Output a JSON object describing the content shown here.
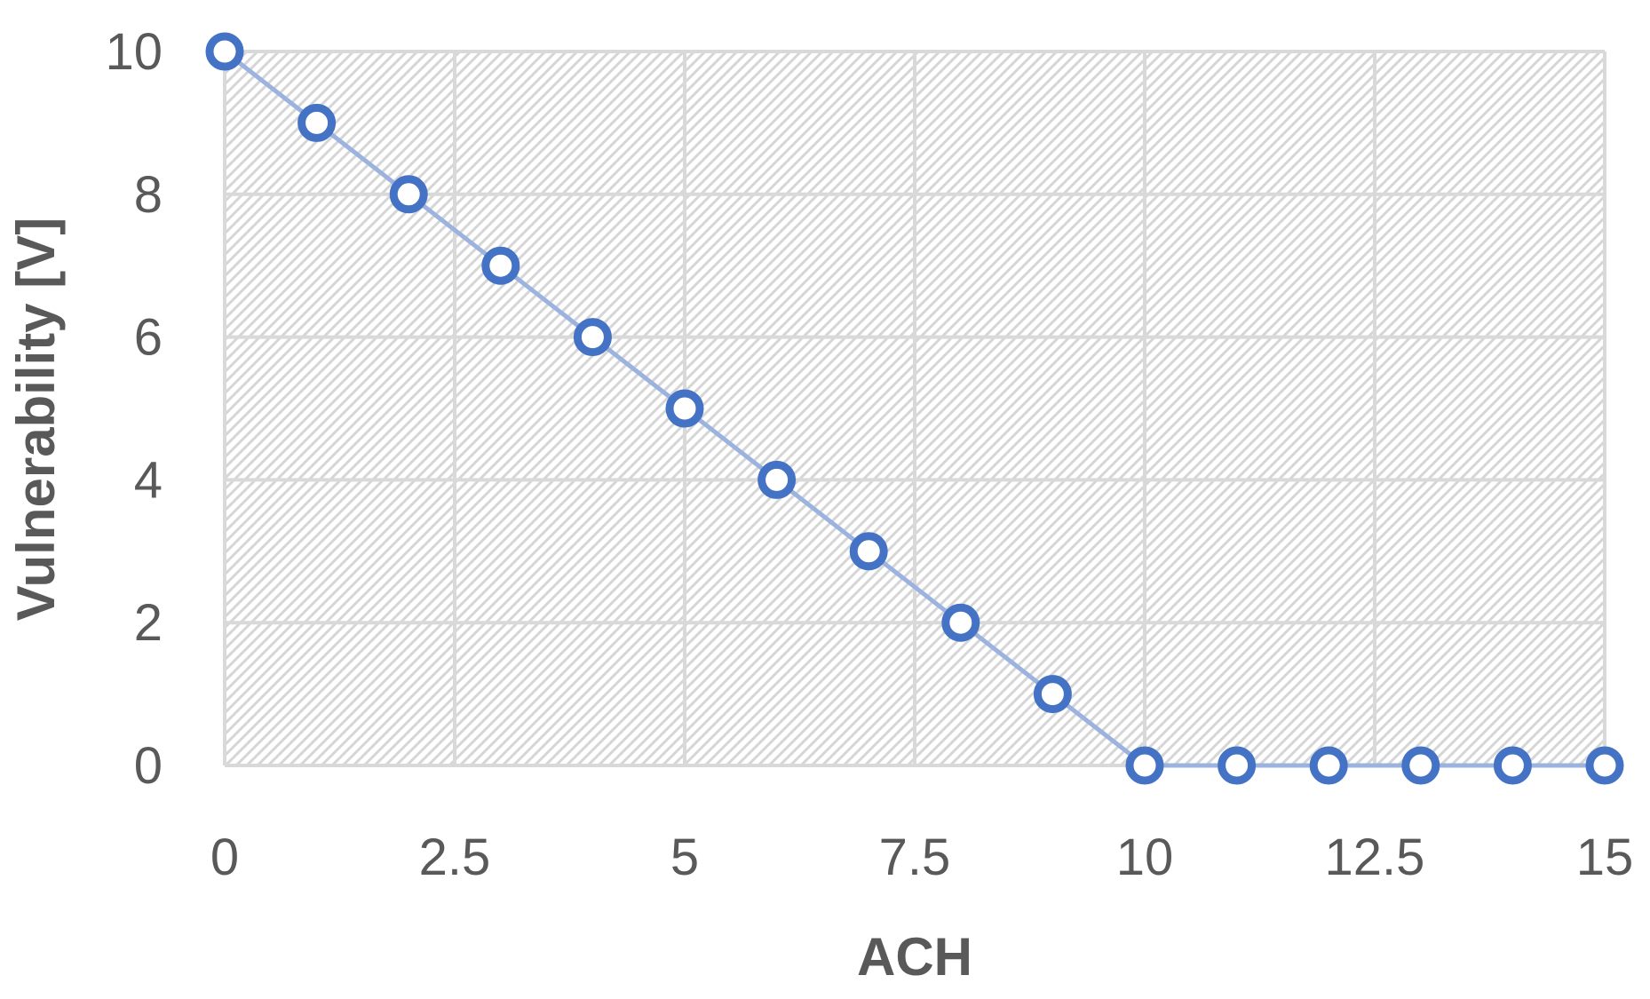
{
  "chart_data": {
    "type": "line",
    "title": "",
    "xlabel": "ACH",
    "ylabel": "Vulnerability [V]",
    "xlim": [
      0,
      15
    ],
    "ylim": [
      0,
      10
    ],
    "x_ticks": [
      0,
      2.5,
      5,
      7.5,
      10,
      12.5,
      15
    ],
    "x_tick_labels": [
      "0",
      "2.5",
      "5",
      "7.5",
      "10",
      "12.5",
      "15"
    ],
    "y_ticks": [
      0,
      2,
      4,
      6,
      8,
      10
    ],
    "y_tick_labels": [
      "0",
      "2",
      "4",
      "6",
      "8",
      "10"
    ],
    "grid": true,
    "legend": "none",
    "plot_background": "diagonal-hatch",
    "colors": {
      "series": "#4472C4",
      "line": "#9DB3DF",
      "grid": "#D9D9D9",
      "hatch": "#D6D6D6",
      "text": "#595959"
    },
    "series": [
      {
        "x": [
          0,
          1,
          2,
          3,
          4,
          5,
          6,
          7,
          8,
          9,
          10,
          11,
          12,
          13,
          14,
          15
        ],
        "y": [
          10,
          9,
          8,
          7,
          6,
          5,
          4,
          3,
          2,
          1,
          0,
          0,
          0,
          0,
          0,
          0
        ]
      }
    ]
  }
}
